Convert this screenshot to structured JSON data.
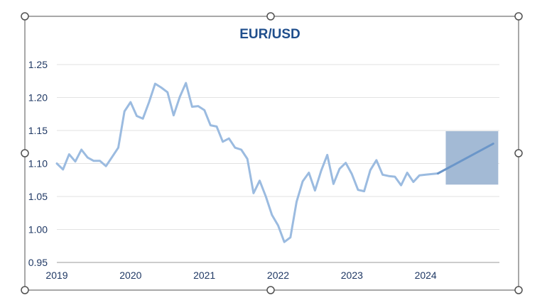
{
  "chart_data": {
    "type": "line",
    "title": "EUR/USD",
    "xlabel": "",
    "ylabel": "",
    "ylim": [
      0.95,
      1.25
    ],
    "xlim": [
      "2019-01",
      "2025-01"
    ],
    "y_ticks": [
      "0.95",
      "1.00",
      "1.05",
      "1.10",
      "1.15",
      "1.20",
      "1.25"
    ],
    "x_ticks": [
      "2019",
      "2020",
      "2021",
      "2022",
      "2023",
      "2024"
    ],
    "grid": true,
    "series": [
      {
        "color": "#9bbbe0",
        "points": [
          [
            "2019-01",
            1.1
          ],
          [
            "2019-02",
            1.091
          ],
          [
            "2019-03",
            1.114
          ],
          [
            "2019-04",
            1.103
          ],
          [
            "2019-05",
            1.121
          ],
          [
            "2019-06",
            1.109
          ],
          [
            "2019-07",
            1.104
          ],
          [
            "2019-08",
            1.104
          ],
          [
            "2019-09",
            1.096
          ],
          [
            "2019-10",
            1.11
          ],
          [
            "2019-11",
            1.124
          ],
          [
            "2019-12",
            1.179
          ],
          [
            "2020-01",
            1.193
          ],
          [
            "2020-02",
            1.172
          ],
          [
            "2020-03",
            1.168
          ],
          [
            "2020-04",
            1.193
          ],
          [
            "2020-05",
            1.221
          ],
          [
            "2020-06",
            1.215
          ],
          [
            "2020-07",
            1.208
          ],
          [
            "2020-08",
            1.173
          ],
          [
            "2020-09",
            1.201
          ],
          [
            "2020-10",
            1.222
          ],
          [
            "2020-11",
            1.186
          ],
          [
            "2020-12",
            1.187
          ],
          [
            "2021-01",
            1.181
          ],
          [
            "2021-02",
            1.158
          ],
          [
            "2021-03",
            1.156
          ],
          [
            "2021-04",
            1.133
          ],
          [
            "2021-05",
            1.138
          ],
          [
            "2021-06",
            1.124
          ],
          [
            "2021-07",
            1.121
          ],
          [
            "2021-08",
            1.107
          ],
          [
            "2021-09",
            1.055
          ],
          [
            "2021-10",
            1.074
          ],
          [
            "2021-11",
            1.05
          ],
          [
            "2021-12",
            1.022
          ],
          [
            "2022-01",
            1.006
          ],
          [
            "2022-02",
            0.981
          ],
          [
            "2022-03",
            0.988
          ],
          [
            "2022-04",
            1.042
          ],
          [
            "2022-05",
            1.073
          ],
          [
            "2022-06",
            1.086
          ],
          [
            "2022-07",
            1.059
          ],
          [
            "2022-08",
            1.089
          ],
          [
            "2022-09",
            1.113
          ],
          [
            "2022-10",
            1.069
          ],
          [
            "2022-11",
            1.092
          ],
          [
            "2022-12",
            1.101
          ],
          [
            "2023-01",
            1.084
          ],
          [
            "2023-02",
            1.06
          ],
          [
            "2023-03",
            1.058
          ],
          [
            "2023-04",
            1.09
          ],
          [
            "2023-05",
            1.105
          ],
          [
            "2023-06",
            1.083
          ],
          [
            "2023-07",
            1.081
          ],
          [
            "2023-08",
            1.08
          ],
          [
            "2023-09",
            1.067
          ],
          [
            "2023-10",
            1.086
          ],
          [
            "2023-11",
            1.072
          ],
          [
            "2023-12",
            1.082
          ],
          [
            "2024-01",
            1.083
          ],
          [
            "2024-02",
            1.084
          ],
          [
            "2024-03",
            1.085
          ]
        ]
      },
      {
        "color": "#6b96c9",
        "points": [
          [
            "2024-03",
            1.085
          ],
          [
            "2024-12",
            1.13
          ]
        ]
      }
    ],
    "shaded_region": {
      "x_range": [
        "2024-03",
        "2024-12"
      ],
      "y_range": [
        1.068,
        1.149
      ],
      "color": "#a3bad5"
    }
  }
}
